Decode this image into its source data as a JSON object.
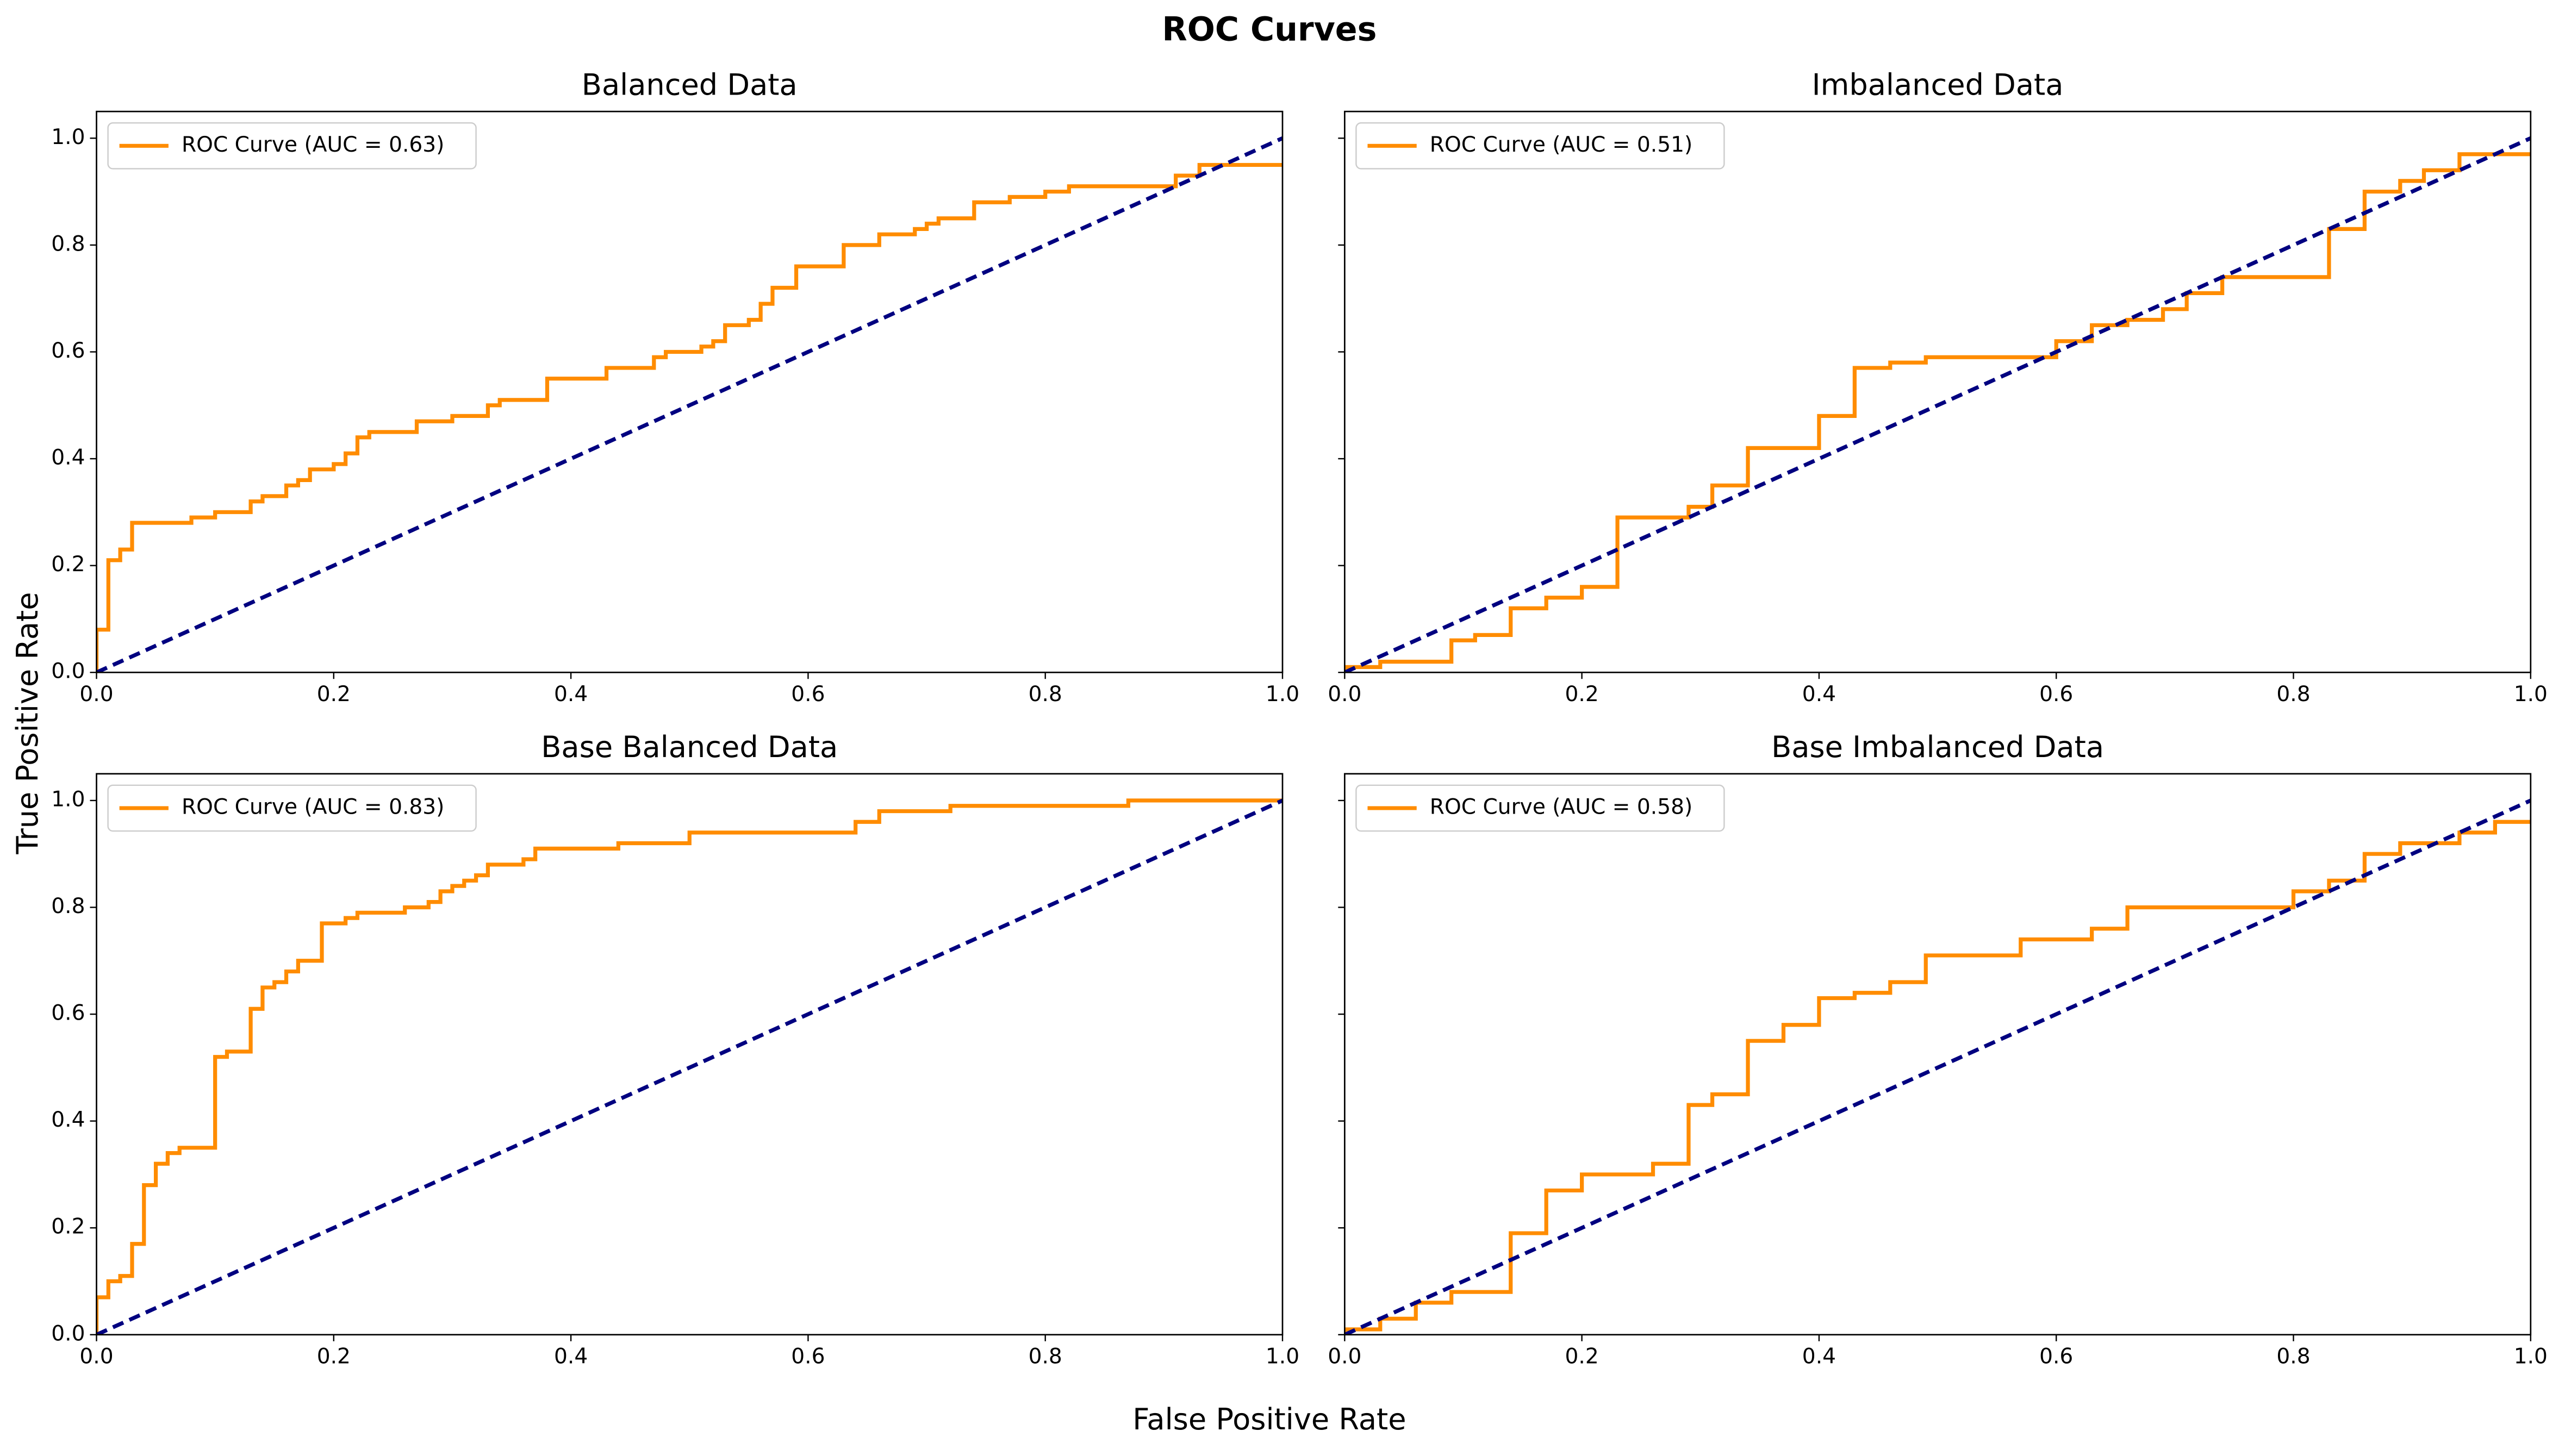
{
  "title": "ROC Curves",
  "xlabel": "False Positive Rate",
  "ylabel": "True Positive Rate",
  "chart_data": [
    {
      "type": "line",
      "title": "Balanced Data",
      "legend": "upper left",
      "ytick_labels": true,
      "xlim": [
        0,
        1
      ],
      "ylim": [
        0,
        1.05
      ],
      "xticks": [
        {
          "value": 0,
          "label": "0.0"
        },
        0.2,
        0.4,
        0.6,
        0.8,
        {
          "value": 1,
          "label": "1.0"
        }
      ],
      "yticks": [
        {
          "value": 0,
          "label": "0.0"
        },
        0.2,
        0.4,
        0.6,
        0.8,
        {
          "value": 1,
          "label": "1.0"
        }
      ],
      "series": [
        {
          "name": "ROC Curve (AUC = 0.63)",
          "color": "#ff8c00",
          "linestyle": "solid",
          "x": [
            0,
            0,
            0.01,
            0.01,
            0.02,
            0.02,
            0.03,
            0.03,
            0.08,
            0.08,
            0.1,
            0.1,
            0.13,
            0.13,
            0.14,
            0.14,
            0.16,
            0.16,
            0.17,
            0.17,
            0.18,
            0.18,
            0.2,
            0.2,
            0.21,
            0.21,
            0.22,
            0.22,
            0.23,
            0.23,
            0.27,
            0.27,
            0.3,
            0.3,
            0.33,
            0.33,
            0.34,
            0.34,
            0.38,
            0.38,
            0.43,
            0.43,
            0.47,
            0.47,
            0.48,
            0.48,
            0.51,
            0.51,
            0.52,
            0.52,
            0.53,
            0.53,
            0.55,
            0.55,
            0.56,
            0.56,
            0.57,
            0.57,
            0.59,
            0.59,
            0.63,
            0.63,
            0.66,
            0.66,
            0.69,
            0.69,
            0.7,
            0.7,
            0.71,
            0.71,
            0.74,
            0.74,
            0.77,
            0.77,
            0.8,
            0.8,
            0.82,
            0.82,
            0.91,
            0.91,
            0.93,
            0.93,
            1
          ],
          "values": [
            0,
            0.08,
            0.08,
            0.21,
            0.21,
            0.23,
            0.23,
            0.28,
            0.28,
            0.29,
            0.29,
            0.3,
            0.3,
            0.32,
            0.32,
            0.33,
            0.33,
            0.35,
            0.35,
            0.36,
            0.36,
            0.38,
            0.38,
            0.39,
            0.39,
            0.41,
            0.41,
            0.44,
            0.44,
            0.45,
            0.45,
            0.47,
            0.47,
            0.48,
            0.48,
            0.5,
            0.5,
            0.51,
            0.51,
            0.55,
            0.55,
            0.57,
            0.57,
            0.59,
            0.59,
            0.6,
            0.6,
            0.61,
            0.61,
            0.62,
            0.62,
            0.65,
            0.65,
            0.66,
            0.66,
            0.69,
            0.69,
            0.72,
            0.72,
            0.76,
            0.76,
            0.8,
            0.8,
            0.82,
            0.82,
            0.83,
            0.83,
            0.84,
            0.84,
            0.85,
            0.85,
            0.88,
            0.88,
            0.89,
            0.89,
            0.9,
            0.9,
            0.91,
            0.91,
            0.93,
            0.93,
            0.95,
            0.95
          ]
        },
        {
          "color": "#000080",
          "linestyle": "dashed",
          "x": [
            0,
            1
          ],
          "values": [
            0,
            1
          ]
        }
      ]
    },
    {
      "type": "line",
      "title": "Imbalanced Data",
      "legend": "upper left",
      "ytick_labels": false,
      "xlim": [
        0,
        1
      ],
      "ylim": [
        0,
        1.05
      ],
      "xticks": [
        {
          "value": 0,
          "label": "0.0"
        },
        0.2,
        0.4,
        0.6,
        0.8,
        {
          "value": 1,
          "label": "1.0"
        }
      ],
      "yticks": [
        0,
        0.2,
        0.4,
        0.6,
        0.8,
        1
      ],
      "series": [
        {
          "name": "ROC Curve (AUC = 0.51)",
          "color": "#ff8c00",
          "linestyle": "solid",
          "x": [
            0,
            0,
            0.03,
            0.03,
            0.09,
            0.09,
            0.11,
            0.11,
            0.14,
            0.14,
            0.17,
            0.17,
            0.2,
            0.2,
            0.23,
            0.23,
            0.29,
            0.29,
            0.31,
            0.31,
            0.34,
            0.34,
            0.4,
            0.4,
            0.43,
            0.43,
            0.46,
            0.46,
            0.49,
            0.49,
            0.6,
            0.6,
            0.63,
            0.63,
            0.66,
            0.66,
            0.69,
            0.69,
            0.71,
            0.71,
            0.74,
            0.74,
            0.83,
            0.83,
            0.86,
            0.86,
            0.89,
            0.89,
            0.91,
            0.91,
            0.94,
            0.94,
            1
          ],
          "values": [
            0,
            0.01,
            0.01,
            0.02,
            0.02,
            0.06,
            0.06,
            0.07,
            0.07,
            0.12,
            0.12,
            0.14,
            0.14,
            0.16,
            0.16,
            0.29,
            0.29,
            0.31,
            0.31,
            0.35,
            0.35,
            0.42,
            0.42,
            0.48,
            0.48,
            0.57,
            0.57,
            0.58,
            0.58,
            0.59,
            0.59,
            0.62,
            0.62,
            0.65,
            0.65,
            0.66,
            0.66,
            0.68,
            0.68,
            0.71,
            0.71,
            0.74,
            0.74,
            0.83,
            0.83,
            0.9,
            0.9,
            0.92,
            0.92,
            0.94,
            0.94,
            0.97,
            0.97
          ]
        },
        {
          "color": "#000080",
          "linestyle": "dashed",
          "x": [
            0,
            1
          ],
          "values": [
            0,
            1
          ]
        }
      ]
    },
    {
      "type": "line",
      "title": "Base Balanced Data",
      "legend": "upper left",
      "ytick_labels": true,
      "xlim": [
        0,
        1
      ],
      "ylim": [
        0,
        1.05
      ],
      "xticks": [
        {
          "value": 0,
          "label": "0.0"
        },
        0.2,
        0.4,
        0.6,
        0.8,
        {
          "value": 1,
          "label": "1.0"
        }
      ],
      "yticks": [
        {
          "value": 0,
          "label": "0.0"
        },
        0.2,
        0.4,
        0.6,
        0.8,
        {
          "value": 1,
          "label": "1.0"
        }
      ],
      "series": [
        {
          "name": "ROC Curve (AUC = 0.83)",
          "color": "#ff8c00",
          "linestyle": "solid",
          "x": [
            0,
            0,
            0.01,
            0.01,
            0.02,
            0.02,
            0.03,
            0.03,
            0.04,
            0.04,
            0.05,
            0.05,
            0.06,
            0.06,
            0.07,
            0.07,
            0.1,
            0.1,
            0.11,
            0.11,
            0.13,
            0.13,
            0.14,
            0.14,
            0.15,
            0.15,
            0.16,
            0.16,
            0.17,
            0.17,
            0.19,
            0.19,
            0.21,
            0.21,
            0.22,
            0.22,
            0.26,
            0.26,
            0.28,
            0.28,
            0.29,
            0.29,
            0.3,
            0.3,
            0.31,
            0.31,
            0.32,
            0.32,
            0.33,
            0.33,
            0.36,
            0.36,
            0.37,
            0.37,
            0.44,
            0.44,
            0.5,
            0.5,
            0.64,
            0.64,
            0.66,
            0.66,
            0.72,
            0.72,
            0.87,
            0.87,
            1
          ],
          "values": [
            0,
            0.07,
            0.07,
            0.1,
            0.1,
            0.11,
            0.11,
            0.17,
            0.17,
            0.28,
            0.28,
            0.32,
            0.32,
            0.34,
            0.34,
            0.35,
            0.35,
            0.52,
            0.52,
            0.53,
            0.53,
            0.61,
            0.61,
            0.65,
            0.65,
            0.66,
            0.66,
            0.68,
            0.68,
            0.7,
            0.7,
            0.77,
            0.77,
            0.78,
            0.78,
            0.79,
            0.79,
            0.8,
            0.8,
            0.81,
            0.81,
            0.83,
            0.83,
            0.84,
            0.84,
            0.85,
            0.85,
            0.86,
            0.86,
            0.88,
            0.88,
            0.89,
            0.89,
            0.91,
            0.91,
            0.92,
            0.92,
            0.94,
            0.94,
            0.96,
            0.96,
            0.98,
            0.98,
            0.99,
            0.99,
            1,
            1
          ]
        },
        {
          "color": "#000080",
          "linestyle": "dashed",
          "x": [
            0,
            1
          ],
          "values": [
            0,
            1
          ]
        }
      ]
    },
    {
      "type": "line",
      "title": "Base Imbalanced Data",
      "legend": "upper left",
      "ytick_labels": false,
      "xlim": [
        0,
        1
      ],
      "ylim": [
        0,
        1.05
      ],
      "xticks": [
        {
          "value": 0,
          "label": "0.0"
        },
        0.2,
        0.4,
        0.6,
        0.8,
        {
          "value": 1,
          "label": "1.0"
        }
      ],
      "yticks": [
        0,
        0.2,
        0.4,
        0.6,
        0.8,
        1
      ],
      "series": [
        {
          "name": "ROC Curve (AUC = 0.58)",
          "color": "#ff8c00",
          "linestyle": "solid",
          "x": [
            0,
            0,
            0.03,
            0.03,
            0.06,
            0.06,
            0.09,
            0.09,
            0.14,
            0.14,
            0.17,
            0.17,
            0.2,
            0.2,
            0.26,
            0.26,
            0.29,
            0.29,
            0.31,
            0.31,
            0.34,
            0.34,
            0.37,
            0.37,
            0.4,
            0.4,
            0.43,
            0.43,
            0.46,
            0.46,
            0.49,
            0.49,
            0.57,
            0.57,
            0.63,
            0.63,
            0.66,
            0.66,
            0.8,
            0.8,
            0.83,
            0.83,
            0.86,
            0.86,
            0.89,
            0.89,
            0.94,
            0.94,
            0.97,
            0.97,
            1
          ],
          "values": [
            0,
            0.01,
            0.01,
            0.03,
            0.03,
            0.06,
            0.06,
            0.08,
            0.08,
            0.19,
            0.19,
            0.27,
            0.27,
            0.3,
            0.3,
            0.32,
            0.32,
            0.43,
            0.43,
            0.45,
            0.45,
            0.55,
            0.55,
            0.58,
            0.58,
            0.63,
            0.63,
            0.64,
            0.64,
            0.66,
            0.66,
            0.71,
            0.71,
            0.74,
            0.74,
            0.76,
            0.76,
            0.8,
            0.8,
            0.83,
            0.83,
            0.85,
            0.85,
            0.9,
            0.9,
            0.92,
            0.92,
            0.94,
            0.94,
            0.96,
            0.96
          ]
        },
        {
          "color": "#000080",
          "linestyle": "dashed",
          "x": [
            0,
            1
          ],
          "values": [
            0,
            1
          ]
        }
      ]
    }
  ]
}
